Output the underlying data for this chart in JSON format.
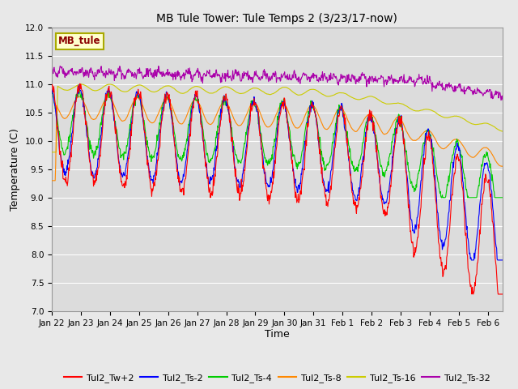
{
  "title": "MB Tule Tower: Tule Temps 2 (3/23/17-now)",
  "xlabel": "Time",
  "ylabel": "Temperature (C)",
  "ylim": [
    7.0,
    12.0
  ],
  "yticks": [
    7.0,
    7.5,
    8.0,
    8.5,
    9.0,
    9.5,
    10.0,
    10.5,
    11.0,
    11.5,
    12.0
  ],
  "fig_bg_color": "#e8e8e8",
  "plot_bg_color": "#dcdcdc",
  "grid_color": "#ffffff",
  "series_colors": {
    "Tul2_Tw+2": "#ff0000",
    "Tul2_Ts-2": "#0000ff",
    "Tul2_Ts-4": "#00cc00",
    "Tul2_Ts-8": "#ff8800",
    "Tul2_Ts-16": "#cccc00",
    "Tul2_Ts-32": "#aa00aa"
  },
  "xtick_labels": [
    "Jan 22",
    "Jan 23",
    "Jan 24",
    "Jan 25",
    "Jan 26",
    "Jan 27",
    "Jan 28",
    "Jan 29",
    "Jan 30",
    "Jan 31",
    "Feb 1",
    "Feb 2",
    "Feb 3",
    "Feb 4",
    "Feb 5",
    "Feb 6"
  ],
  "legend_label": "MB_tule",
  "legend_bg": "#ffffcc",
  "legend_edge": "#aaaa00",
  "figsize": [
    6.4,
    4.8
  ],
  "dpi": 100
}
